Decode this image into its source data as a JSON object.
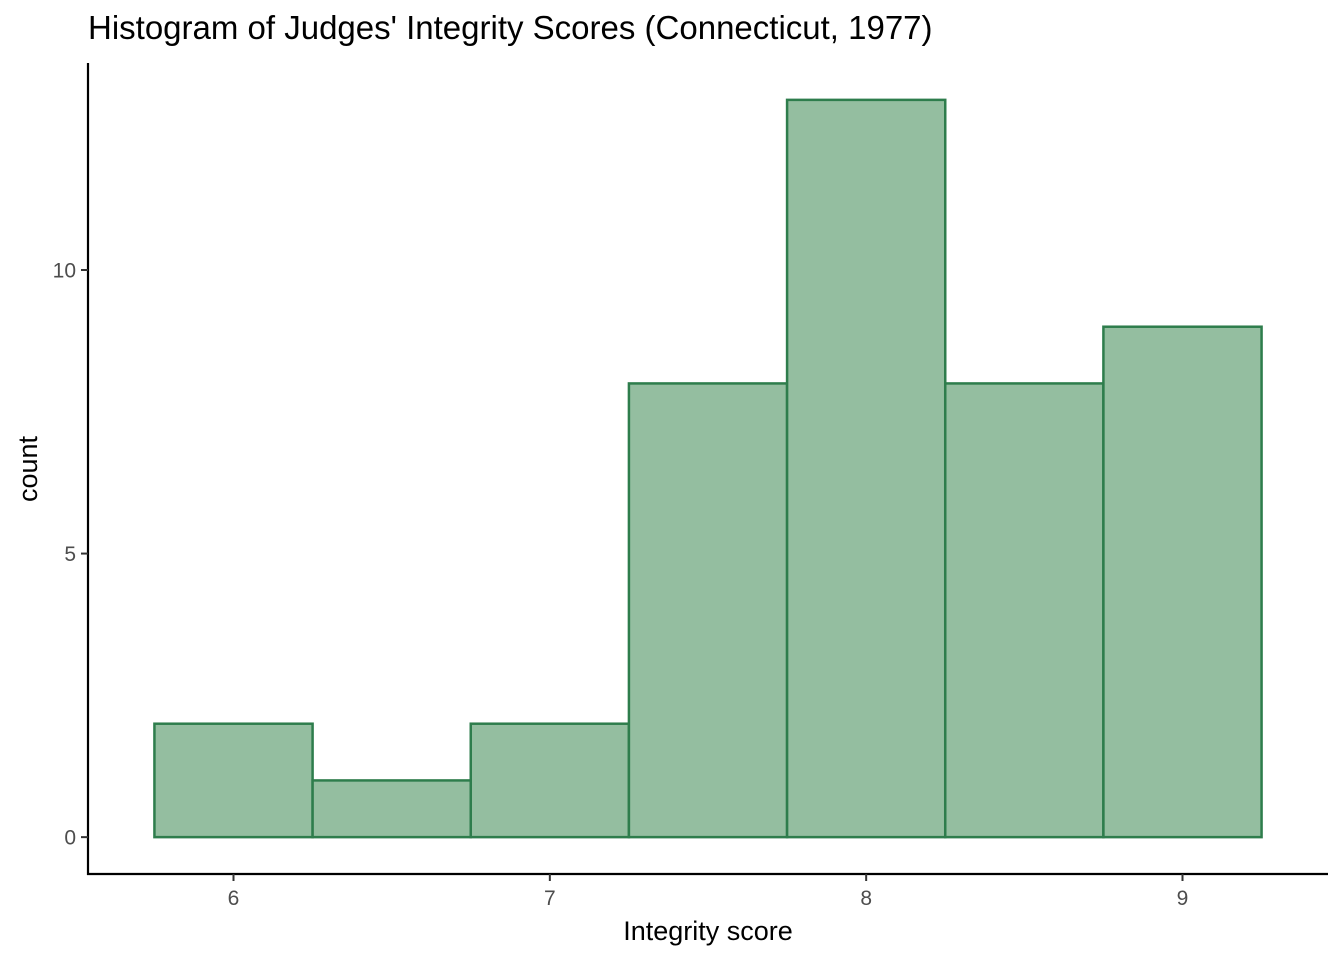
{
  "chart_data": {
    "type": "bar",
    "title": "Histogram of Judges' Integrity Scores (Connecticut, 1977)",
    "xlabel": "Integrity score",
    "ylabel": "count",
    "bins": [
      {
        "start": 5.75,
        "end": 6.25,
        "count": 2
      },
      {
        "start": 6.25,
        "end": 6.75,
        "count": 1
      },
      {
        "start": 6.75,
        "end": 7.25,
        "count": 2
      },
      {
        "start": 7.25,
        "end": 7.75,
        "count": 8
      },
      {
        "start": 7.75,
        "end": 8.25,
        "count": 13
      },
      {
        "start": 8.25,
        "end": 8.75,
        "count": 8
      },
      {
        "start": 8.75,
        "end": 9.25,
        "count": 9
      }
    ],
    "xticks": [
      6,
      7,
      8,
      9
    ],
    "yticks": [
      0,
      5,
      10
    ],
    "xlim": [
      5.54,
      9.46
    ],
    "ylim": [
      -0.65,
      13.65
    ],
    "grid": false,
    "colors": {
      "bar_fill": "#94bea0",
      "bar_stroke": "#2e7d4c",
      "axis": "#000000",
      "tick_text": "#4d4d4d"
    }
  }
}
